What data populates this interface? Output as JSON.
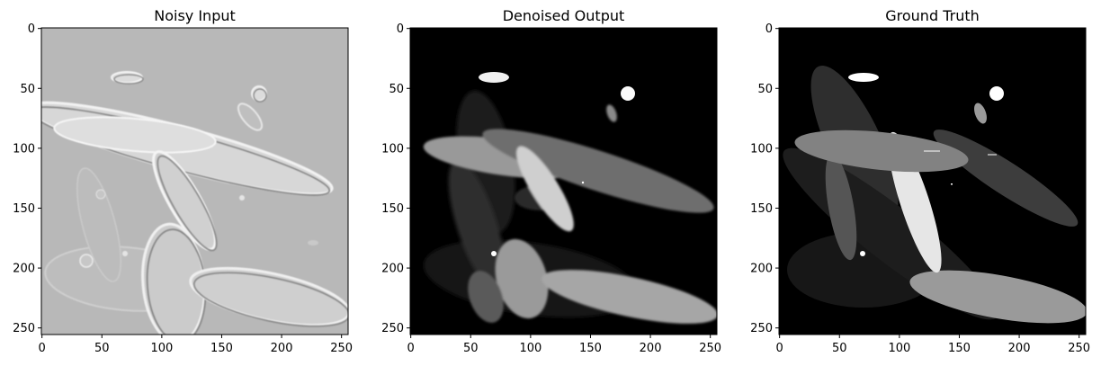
{
  "figure": {
    "panels": [
      {
        "id": "noisy",
        "title": "Noisy Input",
        "background": "#b8b8b8"
      },
      {
        "id": "denoised",
        "title": "Denoised Output",
        "background": "#000000"
      },
      {
        "id": "truth",
        "title": "Ground Truth",
        "background": "#000000"
      }
    ],
    "x_ticks": [
      "0",
      "50",
      "100",
      "150",
      "200",
      "250"
    ],
    "y_ticks": [
      "0",
      "50",
      "100",
      "150",
      "200",
      "250"
    ],
    "colors": {
      "axis": "#000000",
      "text": "#000000"
    }
  },
  "chart_data": {
    "type": "heatmap",
    "xlim": [
      0,
      256
    ],
    "ylim": [
      256,
      0
    ],
    "panels": [
      "Noisy Input",
      "Denoised Output",
      "Ground Truth"
    ]
  }
}
